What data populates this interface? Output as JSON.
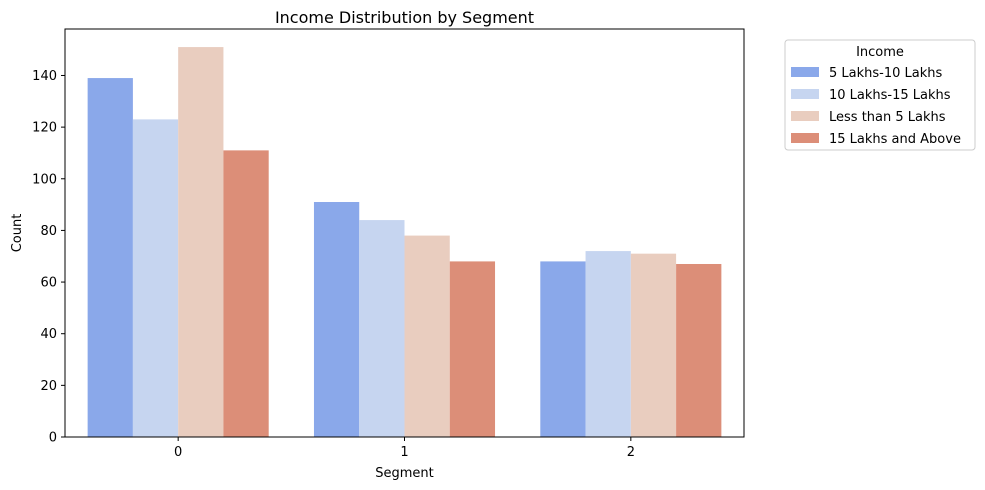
{
  "chart_data": {
    "type": "bar",
    "title": "Income Distribution by Segment",
    "xlabel": "Segment",
    "ylabel": "Count",
    "categories": [
      "0",
      "1",
      "2"
    ],
    "ylim": [
      0,
      158
    ],
    "yticks": [
      0,
      20,
      40,
      60,
      80,
      100,
      120,
      140
    ],
    "grid": false,
    "legend": {
      "title": "Income",
      "placement": "outside-right-top"
    },
    "series": [
      {
        "name": "5 Lakhs-10 Lakhs",
        "color": "#8aa8ea",
        "values": [
          139,
          91,
          68
        ]
      },
      {
        "name": "10 Lakhs-15 Lakhs",
        "color": "#c6d5f0",
        "values": [
          123,
          84,
          72
        ]
      },
      {
        "name": "Less than 5 Lakhs",
        "color": "#e9cdbf",
        "values": [
          151,
          78,
          71
        ]
      },
      {
        "name": "15 Lakhs and Above",
        "color": "#dc8e78",
        "values": [
          111,
          68,
          67
        ]
      }
    ]
  }
}
